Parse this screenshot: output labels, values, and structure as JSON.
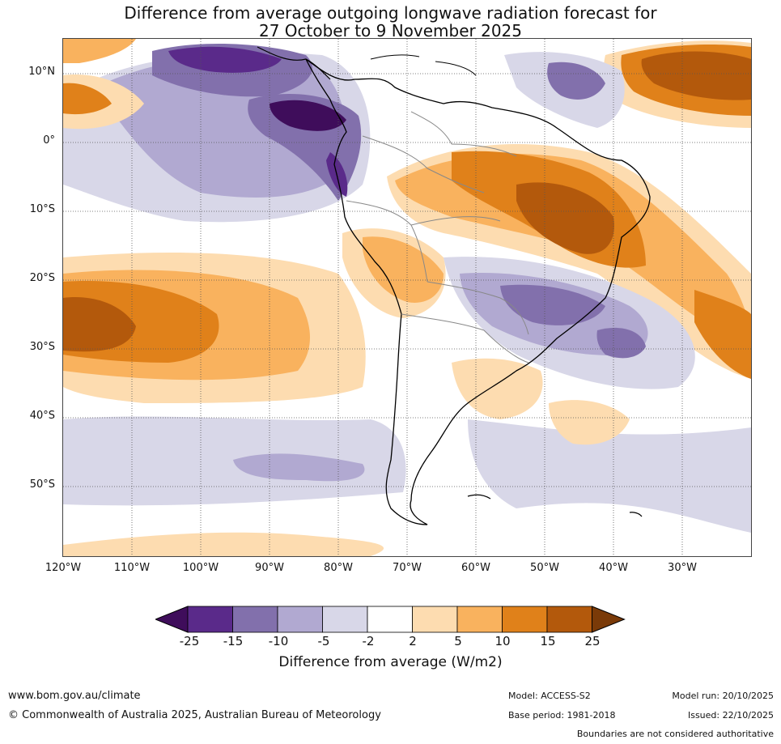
{
  "title": {
    "line1": "Difference from average outgoing longwave radiation forecast for",
    "line2": "27 October to 9 November 2025"
  },
  "map": {
    "lat_labels": [
      "10°N",
      "0°",
      "10°S",
      "20°S",
      "30°S",
      "40°S",
      "50°S"
    ],
    "lon_labels": [
      "120°W",
      "110°W",
      "100°W",
      "90°W",
      "80°W",
      "70°W",
      "60°W",
      "50°W",
      "40°W",
      "30°W"
    ]
  },
  "colorbar": {
    "ticks": [
      "-25",
      "-15",
      "-10",
      "-5",
      "-2",
      "2",
      "5",
      "10",
      "15",
      "25"
    ],
    "colors": [
      "#3f0d5b",
      "#5a2a8a",
      "#8270ac",
      "#b1a9d1",
      "#d8d7e8",
      "#ffffff",
      "#fddcb0",
      "#f9b25e",
      "#e0811a",
      "#b3590c",
      "#7a3a08"
    ],
    "label": "Difference from average (W/m2)"
  },
  "footer": {
    "website": "www.bom.gov.au/climate",
    "copyright": "© Commonwealth of Australia 2025, Australian Bureau of Meteorology",
    "model": "Model: ACCESS-S2",
    "base_period": "Base period: 1981-2018",
    "model_run": "Model run: 20/10/2025",
    "issued": "Issued: 22/10/2025",
    "disclaimer": "Boundaries are not considered authoritative"
  }
}
